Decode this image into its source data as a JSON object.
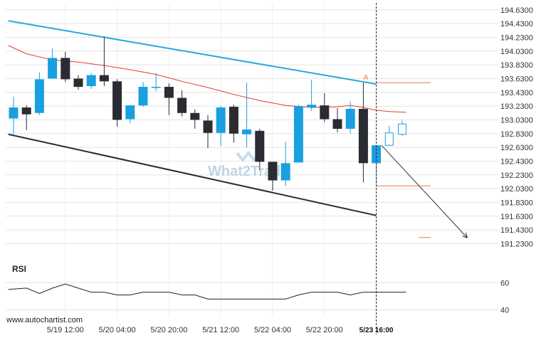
{
  "chart_data": {
    "type": "candlestick",
    "source_label": "www.autochartist.com",
    "watermark": "What2Trade",
    "price_axis": {
      "min": 191.1,
      "max": 194.7,
      "ticks": [
        "194.6300",
        "194.4300",
        "194.2300",
        "194.0300",
        "193.8300",
        "193.6300",
        "193.4300",
        "193.2300",
        "193.0300",
        "192.8300",
        "192.6300",
        "192.4300",
        "192.2300",
        "192.0300",
        "191.8300",
        "191.6300",
        "191.4300",
        "191.2300"
      ]
    },
    "time_axis": {
      "labels": [
        {
          "bar": 4,
          "text": "5/19 12:00"
        },
        {
          "bar": 8,
          "text": "5/20 04:00"
        },
        {
          "bar": 12,
          "text": "5/20 20:00"
        },
        {
          "bar": 16,
          "text": "5/21 12:00"
        },
        {
          "bar": 20,
          "text": "5/22 04:00"
        },
        {
          "bar": 24,
          "text": "5/22 20:00"
        },
        {
          "bar": 28,
          "text": "5/23 16:00"
        }
      ]
    },
    "candles": [
      {
        "o": 193.05,
        "h": 193.37,
        "l": 192.82,
        "c": 193.21
      },
      {
        "o": 193.21,
        "h": 193.24,
        "l": 192.88,
        "c": 193.11
      },
      {
        "o": 193.13,
        "h": 193.72,
        "l": 193.1,
        "c": 193.62
      },
      {
        "o": 193.63,
        "h": 194.07,
        "l": 193.63,
        "c": 193.93
      },
      {
        "o": 193.93,
        "h": 194.02,
        "l": 193.58,
        "c": 193.62
      },
      {
        "o": 193.63,
        "h": 193.68,
        "l": 193.47,
        "c": 193.51
      },
      {
        "o": 193.52,
        "h": 193.71,
        "l": 193.48,
        "c": 193.68
      },
      {
        "o": 193.68,
        "h": 194.24,
        "l": 193.52,
        "c": 193.59
      },
      {
        "o": 193.59,
        "h": 193.62,
        "l": 192.93,
        "c": 193.03
      },
      {
        "o": 193.04,
        "h": 193.25,
        "l": 192.98,
        "c": 193.24
      },
      {
        "o": 193.24,
        "h": 193.58,
        "l": 193.22,
        "c": 193.51
      },
      {
        "o": 193.51,
        "h": 193.71,
        "l": 193.45,
        "c": 193.51
      },
      {
        "o": 193.51,
        "h": 193.56,
        "l": 193.1,
        "c": 193.35
      },
      {
        "o": 193.35,
        "h": 193.46,
        "l": 193.08,
        "c": 193.13
      },
      {
        "o": 193.13,
        "h": 193.18,
        "l": 192.9,
        "c": 193.03
      },
      {
        "o": 193.02,
        "h": 193.1,
        "l": 192.62,
        "c": 192.84
      },
      {
        "o": 192.84,
        "h": 193.23,
        "l": 192.65,
        "c": 193.21
      },
      {
        "o": 193.22,
        "h": 193.25,
        "l": 192.7,
        "c": 192.83
      },
      {
        "o": 192.82,
        "h": 193.57,
        "l": 192.63,
        "c": 192.89
      },
      {
        "o": 192.87,
        "h": 192.9,
        "l": 192.3,
        "c": 192.42
      },
      {
        "o": 192.42,
        "h": 192.42,
        "l": 192.0,
        "c": 192.15
      },
      {
        "o": 192.15,
        "h": 192.71,
        "l": 192.07,
        "c": 192.4
      },
      {
        "o": 192.41,
        "h": 193.25,
        "l": 192.41,
        "c": 193.23
      },
      {
        "o": 193.21,
        "h": 193.61,
        "l": 193.16,
        "c": 193.25
      },
      {
        "o": 193.24,
        "h": 193.42,
        "l": 193.0,
        "c": 193.04
      },
      {
        "o": 193.04,
        "h": 193.2,
        "l": 192.85,
        "c": 192.9
      },
      {
        "o": 192.9,
        "h": 193.3,
        "l": 192.83,
        "c": 193.19
      },
      {
        "o": 193.19,
        "h": 193.57,
        "l": 192.12,
        "c": 192.4
      },
      {
        "o": 192.4,
        "h": 192.66,
        "l": 192.1,
        "c": 192.66
      },
      {
        "o": 192.66,
        "h": 192.94,
        "l": 192.65,
        "c": 192.84
      },
      {
        "o": 192.82,
        "h": 193.02,
        "l": 192.8,
        "c": 192.97
      }
    ],
    "moving_average": [
      {
        "bar": -0.4,
        "v": 194.11
      },
      {
        "bar": 1,
        "v": 193.99
      },
      {
        "bar": 3,
        "v": 193.9
      },
      {
        "bar": 5,
        "v": 193.87
      },
      {
        "bar": 7,
        "v": 193.82
      },
      {
        "bar": 9,
        "v": 193.76
      },
      {
        "bar": 11,
        "v": 193.69
      },
      {
        "bar": 13,
        "v": 193.59
      },
      {
        "bar": 15,
        "v": 193.5
      },
      {
        "bar": 17,
        "v": 193.4
      },
      {
        "bar": 19,
        "v": 193.31
      },
      {
        "bar": 21,
        "v": 193.24
      },
      {
        "bar": 23,
        "v": 193.21
      },
      {
        "bar": 25,
        "v": 193.22
      },
      {
        "bar": 26,
        "v": 193.24
      },
      {
        "bar": 27,
        "v": 193.21
      },
      {
        "bar": 28,
        "v": 193.17
      },
      {
        "bar": 29,
        "v": 193.15
      },
      {
        "bar": 30.3,
        "v": 193.14
      }
    ],
    "channel": {
      "upper": [
        {
          "bar": -0.4,
          "v": 194.47
        },
        {
          "bar": 28,
          "v": 193.55
        }
      ],
      "lower": [
        {
          "bar": -0.4,
          "v": 192.82
        },
        {
          "bar": 28,
          "v": 191.64
        }
      ]
    },
    "current_bar": 28,
    "current_bar_label": "5/23 16:00",
    "levels": [
      {
        "v": 193.57,
        "from_bar": 28,
        "to_bar": 32.2,
        "label": "A"
      },
      {
        "v": 192.07,
        "from_bar": 28,
        "to_bar": 32.2
      },
      {
        "v": 191.32,
        "from_bar": 31.3,
        "to_bar": 32.2
      }
    ],
    "projection": {
      "from_bar": 28.4,
      "from_v": 192.66,
      "to_bar": 35.0,
      "to_v": 191.32
    },
    "rsi": {
      "label": "RSI",
      "min": 35,
      "max": 68,
      "ticks": [
        60,
        40
      ],
      "values": [
        {
          "bar": -0.4,
          "v": 55
        },
        {
          "bar": 1,
          "v": 56
        },
        {
          "bar": 2,
          "v": 52
        },
        {
          "bar": 3,
          "v": 56
        },
        {
          "bar": 4,
          "v": 59
        },
        {
          "bar": 5,
          "v": 56
        },
        {
          "bar": 6,
          "v": 53
        },
        {
          "bar": 7,
          "v": 53
        },
        {
          "bar": 8,
          "v": 51
        },
        {
          "bar": 9,
          "v": 51
        },
        {
          "bar": 10,
          "v": 53
        },
        {
          "bar": 11,
          "v": 53
        },
        {
          "bar": 12,
          "v": 53
        },
        {
          "bar": 13,
          "v": 51
        },
        {
          "bar": 14,
          "v": 51
        },
        {
          "bar": 15,
          "v": 48
        },
        {
          "bar": 17,
          "v": 48
        },
        {
          "bar": 19,
          "v": 48
        },
        {
          "bar": 20,
          "v": 48
        },
        {
          "bar": 21,
          "v": 48
        },
        {
          "bar": 22,
          "v": 51
        },
        {
          "bar": 23,
          "v": 53
        },
        {
          "bar": 24,
          "v": 53
        },
        {
          "bar": 25,
          "v": 53
        },
        {
          "bar": 26,
          "v": 51
        },
        {
          "bar": 27,
          "v": 53
        },
        {
          "bar": 28,
          "v": 53
        },
        {
          "bar": 29,
          "v": 53
        },
        {
          "bar": 30,
          "v": 53
        },
        {
          "bar": 30.3,
          "v": 53
        }
      ]
    },
    "colors": {
      "bull": "#1a9fe0",
      "bear": "#2b2b33",
      "channel_upper": "#29a8e0",
      "channel_lower": "#2b2b33",
      "moving_average": "#e53935",
      "level": "#f07840",
      "rsi": "#222222",
      "grid": "#e4e4e4"
    }
  }
}
